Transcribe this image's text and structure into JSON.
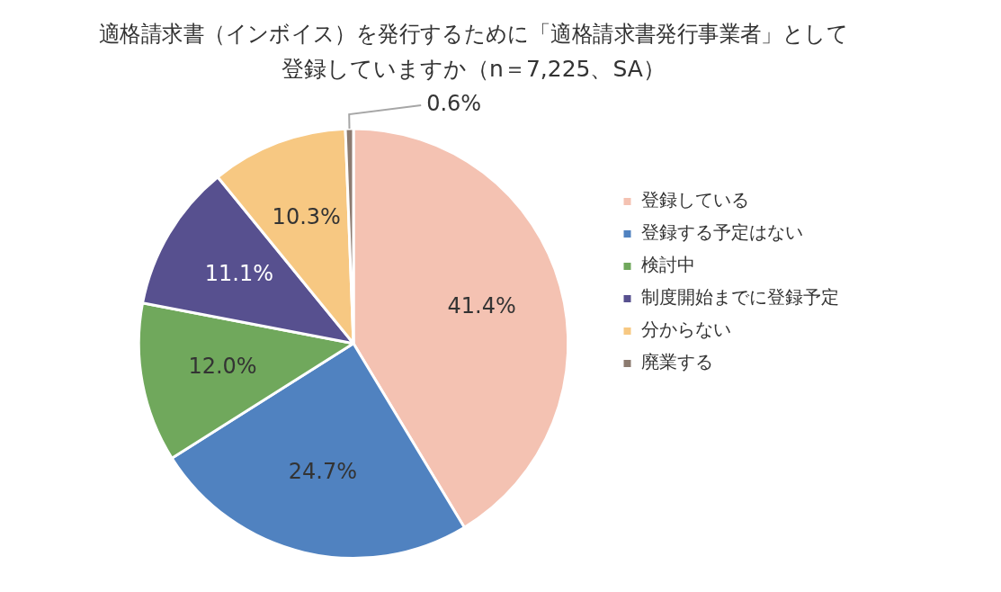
{
  "chart_data": {
    "type": "pie",
    "title": [
      "適格請求書（インボイス）を発行するために「適格請求書発行事業者」として",
      "登録していますか（n＝7,225、SA）"
    ],
    "categories": [
      "登録している",
      "登録する予定はない",
      "検討中",
      "制度開始までに登録予定",
      "分からない",
      "廃業する"
    ],
    "values": [
      41.4,
      24.7,
      12.0,
      11.1,
      10.3,
      0.6
    ],
    "value_labels": [
      "41.4%",
      "24.7%",
      "12.0%",
      "11.1%",
      "10.3%",
      "0.6%"
    ],
    "colors": [
      "#f4c2b2",
      "#5082c0",
      "#70a85c",
      "#57508f",
      "#f7c882",
      "#8c7b70"
    ],
    "legend": "right",
    "data_labels": true
  }
}
